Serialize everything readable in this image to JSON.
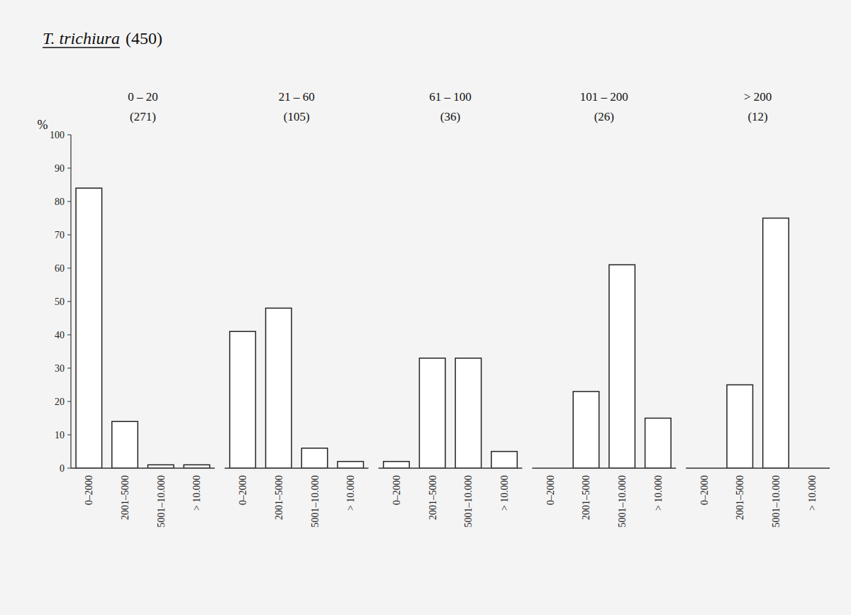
{
  "title": "T. trichiura",
  "subtitle": "(450)",
  "chart_data": [
    {
      "type": "bar",
      "title": "0 – 20",
      "subtitle": "(271)",
      "ylabel": "%",
      "categories": [
        "0–2000",
        "2001–5000",
        "5001–10.000",
        "> 10.000"
      ],
      "values": [
        84,
        14,
        1,
        1
      ],
      "color": "#ffffff",
      "ylim": [
        0,
        100
      ],
      "yticks": [
        0,
        10,
        20,
        30,
        40,
        50,
        60,
        70,
        80,
        90,
        100
      ],
      "grid": false
    },
    {
      "type": "bar",
      "title": "21 – 60",
      "subtitle": "(105)",
      "categories": [
        "0–2000",
        "2001–5000",
        "5001–10.000",
        "> 10.000"
      ],
      "values": [
        41,
        48,
        6,
        2
      ],
      "color": "#ffffff",
      "ylim": [
        0,
        100
      ],
      "grid": false,
      "tick_labels": "x"
    },
    {
      "type": "bar",
      "title": "61 – 100",
      "subtitle": "(36)",
      "categories": [
        "0–2000",
        "2001–5000",
        "5001–10.000",
        "> 10.000"
      ],
      "values": [
        2,
        33,
        33,
        5
      ],
      "color": "#ffffff",
      "ylim": [
        0,
        100
      ],
      "grid": false,
      "tick_labels": "x"
    },
    {
      "type": "bar",
      "title": "101 – 200",
      "subtitle": "(26)",
      "categories": [
        "0–2000",
        "2001–5000",
        "5001–10.000",
        "> 10.000"
      ],
      "values": [
        0,
        23,
        61,
        15
      ],
      "color": "#ffffff",
      "ylim": [
        0,
        100
      ],
      "grid": false,
      "tick_labels": "x"
    },
    {
      "type": "bar",
      "title": "> 200",
      "subtitle": "(12)",
      "categories": [
        "0–2000",
        "2001–5000",
        "5001–10.000",
        "> 10.000"
      ],
      "values": [
        0,
        25,
        75,
        0
      ],
      "color": "#ffffff",
      "ylim": [
        0,
        100
      ],
      "grid": false,
      "tick_labels": "x"
    }
  ]
}
